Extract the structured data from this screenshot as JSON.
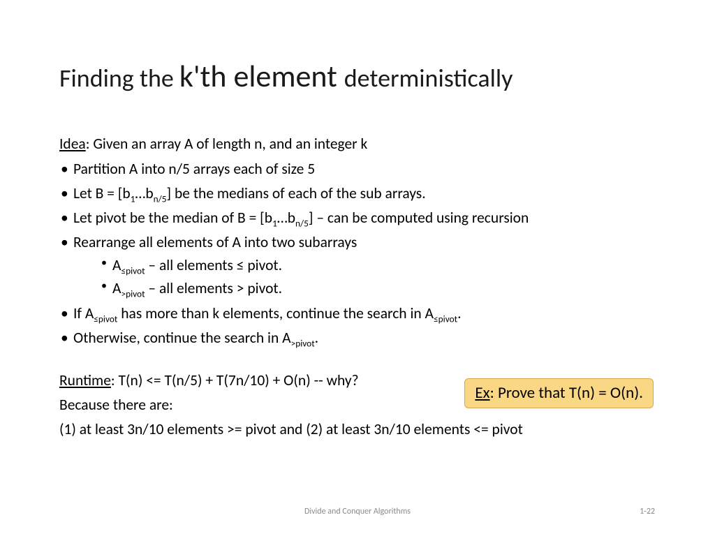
{
  "title": {
    "a": "Finding the ",
    "b": "k'th element ",
    "c": "deterministically"
  },
  "idea": {
    "label": "Idea",
    "text": ": Given an array A of length n, and an integer k"
  },
  "bullets": {
    "b1": "Partition A into n/5 arrays each of size 5",
    "b2": {
      "pre": "Let B = [b",
      "s1": "1",
      "mid": "…b",
      "s2": "n/5",
      "post": "] be the medians of each of the sub arrays."
    },
    "b3": {
      "pre": "Let pivot be the median of B = [b",
      "s1": "1",
      "mid": "…b",
      "s2": "n/5",
      "post": "] – can be computed using recursion"
    },
    "b4": "Rearrange all elements of A into two subarrays",
    "b4a": {
      "pre": "A",
      "sub": "≤pivot",
      "post": " – all elements ≤ pivot."
    },
    "b4b": {
      "pre": "A",
      "sub": ">pivot",
      "post": " – all elements > pivot."
    },
    "b5": {
      "pre": "If A",
      "s1": "≤pivot",
      "mid": " has more than k elements, continue the search in A",
      "s2": "≤pivot",
      "post": "."
    },
    "b6": {
      "pre": "Otherwise, continue the search in A",
      "sub": ">pivot",
      "post": "."
    }
  },
  "runtime": {
    "label": "Runtime",
    "text": ": T(n) <= T(n/5) + T(7n/10) + O(n) -- why?"
  },
  "because": "Because there are:",
  "reason": "(1) at least 3n/10 elements >= pivot and (2) at least 3n/10 elements <= pivot",
  "callout": {
    "label": "Ex",
    "text": ": Prove that T(n) = O(n)."
  },
  "footer": {
    "center": "Divide and Conquer Algorithms",
    "right": "1-22"
  },
  "style": {
    "callout_bg": "#fad785",
    "callout_border": "#d9a64c",
    "footer_color": "#8a8a8a",
    "title_font_a": 36,
    "title_font_b": 44,
    "title_font_c": 36,
    "body_font": 21.5,
    "callout_font": 23,
    "slide_w": 1024,
    "slide_h": 768
  }
}
